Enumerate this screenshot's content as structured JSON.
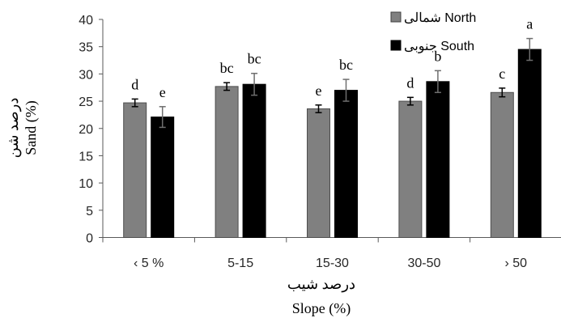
{
  "chart_data": {
    "type": "bar",
    "categories": [
      "‹ 5 %",
      "5-15",
      "15-30",
      "30-50",
      "› 50"
    ],
    "series": [
      {
        "name": "شمالی North",
        "color": "#808080",
        "values": [
          24.7,
          27.7,
          23.6,
          25.0,
          26.6
        ],
        "errors": [
          0.7,
          0.7,
          0.7,
          0.7,
          0.8
        ],
        "letters": [
          "d",
          "bc",
          "e",
          "d",
          "c"
        ]
      },
      {
        "name": "جنوبی South",
        "color": "#000000",
        "values": [
          22.1,
          28.1,
          27.0,
          28.6,
          34.5
        ],
        "errors": [
          1.9,
          2.0,
          2.0,
          2.0,
          2.0
        ],
        "letters": [
          "e",
          "bc",
          "bc",
          "b",
          "a"
        ]
      }
    ],
    "xlabel_fa": "درصد شیب",
    "xlabel": "Slope (%)",
    "ylabel_fa": "درصد شن",
    "ylabel": "Sand (%)",
    "ylim": [
      0,
      40
    ],
    "yticks": [
      0,
      5,
      10,
      15,
      20,
      25,
      30,
      35,
      40
    ],
    "grid": false,
    "legend_position": "top-right"
  }
}
